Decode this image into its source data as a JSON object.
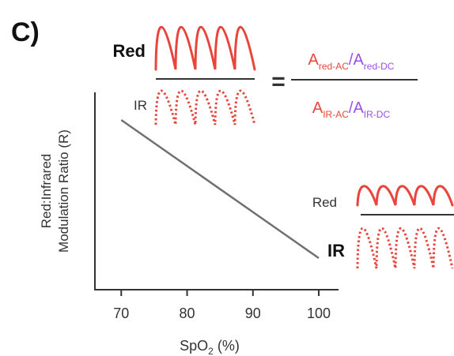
{
  "panel_label": "C)",
  "colors": {
    "waveform": "#e8453c",
    "formula_red": "#e8453c",
    "formula_purple": "#9b4fe8",
    "line": "#707070",
    "axis": "#333333",
    "text": "#333333"
  },
  "top_inset": {
    "numerator_label": "Red",
    "denominator_label": "IR",
    "equals": "="
  },
  "formula": {
    "num_red_base": "A",
    "num_red_sub": "red-AC",
    "num_slash": "/",
    "num_purple_base": "A",
    "num_purple_sub": "red-DC",
    "den_red_base": "A",
    "den_red_sub": "IR-AC",
    "den_slash": "/",
    "den_purple_base": "A",
    "den_purple_sub": "IR-DC"
  },
  "bottom_inset": {
    "numerator_label": "Red",
    "denominator_label": "IR"
  },
  "chart_data": {
    "type": "line",
    "title": "",
    "xlabel_base": "SpO",
    "xlabel_sub": "2",
    "xlabel_unit": " (%)",
    "ylabel_line1": "Red:Infrared",
    "ylabel_line2": "Modulation Ratio (R)",
    "xlim": [
      66,
      103
    ],
    "ylim": [
      0,
      1
    ],
    "xticks": [
      "70",
      "80",
      "90",
      "100"
    ],
    "y_ticks_shown": false,
    "series": [
      {
        "x": [
          70,
          100
        ],
        "y": [
          0.86,
          0.16
        ]
      }
    ]
  }
}
